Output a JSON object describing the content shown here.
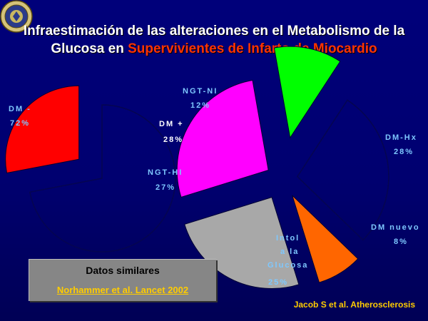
{
  "title": {
    "line1": "Infraestimación de las alteraciones en el Metabolismo de la",
    "line2_prefix": "Glucosa en ",
    "line2_highlight": "Supervivientes de Infarto de Miocardio"
  },
  "chart_data": [
    {
      "type": "pie",
      "slices": [
        {
          "name": "DM -",
          "value": 72,
          "label": "72%",
          "color": "none"
        },
        {
          "name": "DM +",
          "value": 28,
          "label": "28%",
          "color": "#ff0000"
        }
      ]
    },
    {
      "type": "pie",
      "slices": [
        {
          "name": "NGT-NI",
          "value": 12,
          "label": "12%",
          "color": "#00ff00"
        },
        {
          "name": "DM-Hx",
          "value": 28,
          "label": "28%",
          "color": "none"
        },
        {
          "name": "DM nuevo",
          "value": 8,
          "label": "8%",
          "color": "#ff6600"
        },
        {
          "name": "Intol a la Glucosa",
          "value": 25,
          "label": "25%",
          "color": "#a8a8a8"
        },
        {
          "name": "NGT-HI",
          "value": 27,
          "label": "27%",
          "color": "#ff00ff"
        }
      ]
    }
  ],
  "note": {
    "line1": "Datos similares",
    "line2": "Norhammer et al. Lancet 2002"
  },
  "citation": "Jacob S et al. Atherosclerosis",
  "logo_icon": "university-seal-icon",
  "colors": {
    "background": "#000070",
    "title": "#ffffff",
    "title_highlight": "#ff3300",
    "label": "#7ec8ff",
    "highlight_text": "#ffcc00"
  }
}
